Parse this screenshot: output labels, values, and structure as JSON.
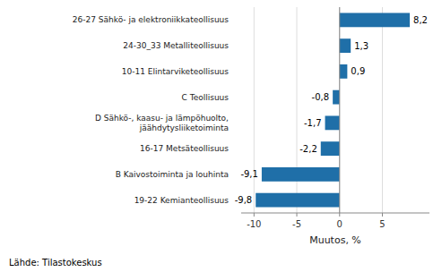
{
  "chart_data": {
    "type": "bar",
    "orientation": "horizontal",
    "categories": [
      "19-22 Kemianteollisuus",
      "B Kaivostoiminta ja louhinta",
      "16-17 Metsäteollisuus",
      "D Sähkö-, kaasu- ja lämpöhuolto,\njäähdytysliiketoiminta",
      "C Teollisuus",
      "10-11 Elintarviketeollisuus",
      "24-30_33 Metalliteollisuus",
      "26-27 Sähkö- ja elektroniikkateollisuus"
    ],
    "values": [
      -9.8,
      -9.1,
      -2.2,
      -1.7,
      -0.8,
      0.9,
      1.3,
      8.2
    ],
    "value_labels": [
      "-9,8",
      "-9,1",
      "-2,2",
      "-1,7",
      "-0,8",
      "0,9",
      "1,3",
      "8,2"
    ],
    "data_labels": true,
    "color": "#1F6FA8",
    "xlabel": "Muutos, %",
    "xlim": [
      -11.5,
      10.5
    ],
    "xticks": [
      -10,
      -5,
      0,
      5
    ],
    "grid": true,
    "annotation": "Lähde: Tilastokeskus"
  }
}
